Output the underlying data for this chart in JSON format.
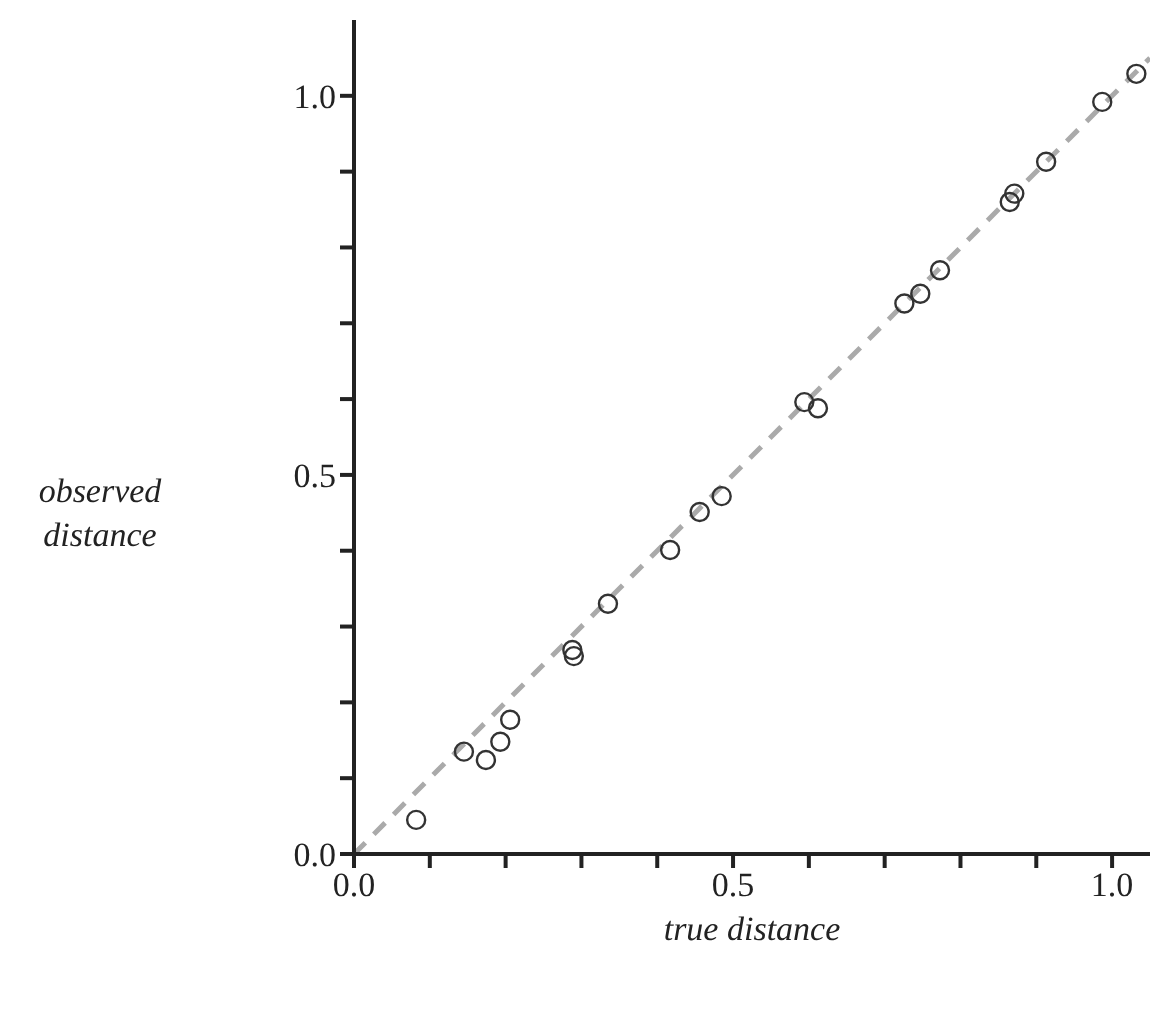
{
  "chart_data": {
    "type": "scatter",
    "xlabel": "true distance",
    "ylabel": "observed distance",
    "xlim": [
      0,
      1.05
    ],
    "ylim": [
      0,
      1.1
    ],
    "xticks": [
      {
        "value": 0,
        "label": "0.0"
      },
      {
        "value": 0.1,
        "label": null
      },
      {
        "value": 0.2,
        "label": null
      },
      {
        "value": 0.3,
        "label": null
      },
      {
        "value": 0.4,
        "label": null
      },
      0.5,
      {
        "value": 0.6,
        "label": null
      },
      {
        "value": 0.7,
        "label": null
      },
      {
        "value": 0.8,
        "label": null
      },
      {
        "value": 0.9,
        "label": null
      },
      {
        "value": 1,
        "label": "1.0"
      }
    ],
    "yticks": [
      {
        "value": 0,
        "label": "0.0"
      },
      {
        "value": 0.1,
        "label": null
      },
      {
        "value": 0.2,
        "label": null
      },
      {
        "value": 0.3,
        "label": null
      },
      {
        "value": 0.4,
        "label": null
      },
      0.5,
      {
        "value": 0.6,
        "label": null
      },
      {
        "value": 0.7,
        "label": null
      },
      {
        "value": 0.8,
        "label": null
      },
      {
        "value": 0.9,
        "label": null
      },
      {
        "value": 1,
        "label": "1.0"
      }
    ],
    "grid": false,
    "legend": false,
    "marker": "circle",
    "series": [
      {
        "color": "#333333",
        "x": [
          0.082,
          0.145,
          0.174,
          0.193,
          0.206,
          0.288,
          0.29,
          0.335,
          0.417,
          0.456,
          0.485,
          0.594,
          0.612,
          0.726,
          0.747,
          0.773,
          0.865,
          0.871,
          0.913,
          0.987,
          1.032
        ],
        "values": [
          0.045,
          0.135,
          0.124,
          0.148,
          0.177,
          0.269,
          0.261,
          0.33,
          0.401,
          0.451,
          0.472,
          0.596,
          0.588,
          0.726,
          0.739,
          0.77,
          0.86,
          0.871,
          0.913,
          0.992,
          1.029
        ]
      },
      {
        "type": "line",
        "color": "#aaaaaa",
        "line_style": "dashed",
        "marker": "none",
        "x": [
          0,
          1.05
        ],
        "values": [
          0,
          1.05
        ]
      }
    ]
  }
}
